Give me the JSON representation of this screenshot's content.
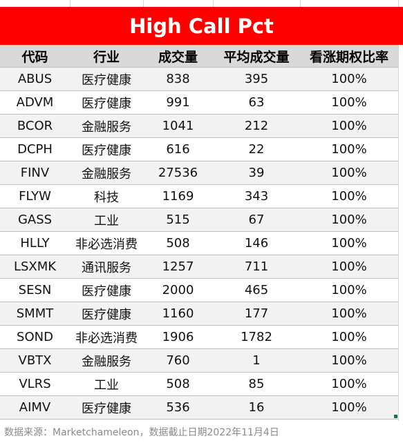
{
  "title": "High Call Pct",
  "headers": [
    "代码",
    "行业",
    "成交量",
    "平均成交量",
    "看涨期权比率"
  ],
  "rows": [
    {
      "code": "ABUS",
      "sector": "医疗健康",
      "volume": "838",
      "avg_volume": "395",
      "call_pct": "100%"
    },
    {
      "code": "ADVM",
      "sector": "医疗健康",
      "volume": "991",
      "avg_volume": "63",
      "call_pct": "100%"
    },
    {
      "code": "BCOR",
      "sector": "金融服务",
      "volume": "1041",
      "avg_volume": "212",
      "call_pct": "100%"
    },
    {
      "code": "DCPH",
      "sector": "医疗健康",
      "volume": "616",
      "avg_volume": "22",
      "call_pct": "100%"
    },
    {
      "code": "FINV",
      "sector": "金融服务",
      "volume": "27536",
      "avg_volume": "39",
      "call_pct": "100%"
    },
    {
      "code": "FLYW",
      "sector": "科技",
      "volume": "1169",
      "avg_volume": "343",
      "call_pct": "100%"
    },
    {
      "code": "GASS",
      "sector": "工业",
      "volume": "515",
      "avg_volume": "67",
      "call_pct": "100%"
    },
    {
      "code": "HLLY",
      "sector": "非必选消费",
      "volume": "508",
      "avg_volume": "146",
      "call_pct": "100%"
    },
    {
      "code": "LSXMK",
      "sector": "通讯服务",
      "volume": "1257",
      "avg_volume": "711",
      "call_pct": "100%"
    },
    {
      "code": "SESN",
      "sector": "医疗健康",
      "volume": "2000",
      "avg_volume": "465",
      "call_pct": "100%"
    },
    {
      "code": "SMMT",
      "sector": "医疗健康",
      "volume": "1160",
      "avg_volume": "177",
      "call_pct": "100%"
    },
    {
      "code": "SOND",
      "sector": "非必选消费",
      "volume": "1906",
      "avg_volume": "1782",
      "call_pct": "100%"
    },
    {
      "code": "VBTX",
      "sector": "金融服务",
      "volume": "760",
      "avg_volume": "1",
      "call_pct": "100%"
    },
    {
      "code": "VLRS",
      "sector": "工业",
      "volume": "508",
      "avg_volume": "85",
      "call_pct": "100%"
    },
    {
      "code": "AIMV",
      "sector": "医疗健康",
      "volume": "536",
      "avg_volume": "16",
      "call_pct": "100%"
    }
  ],
  "footer": "数据来源：Marketchameleon，数据截止日期2022年11月4日",
  "colors": {
    "title_bg": "#ff0000",
    "header_bg": "#d9d9d9",
    "stripe": "#f2f2f2",
    "footer_text": "#8a8a8a"
  }
}
